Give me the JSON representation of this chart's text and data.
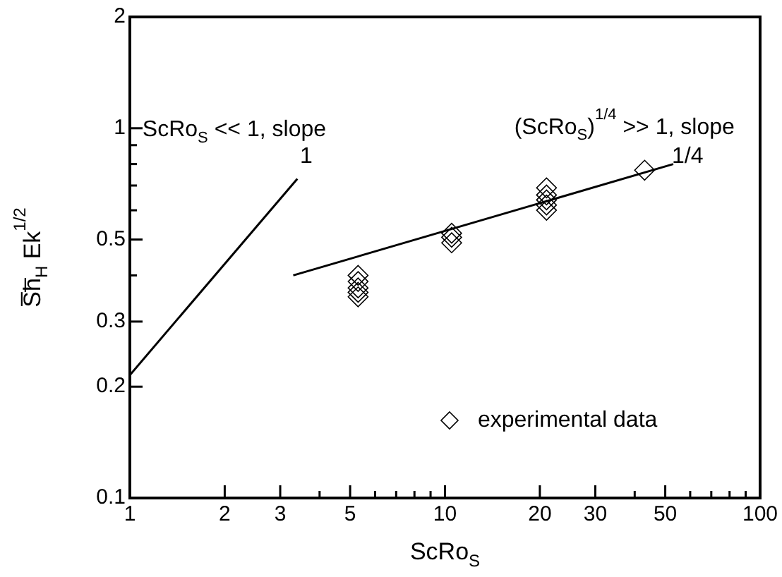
{
  "chart_data": {
    "type": "scatter",
    "xlabel": "ScRo$_{S}$",
    "ylabel": "S̅h̅$_{H}$ Ek$^{1/2}$",
    "log": "xy",
    "xlim": [
      1,
      100
    ],
    "ylim": [
      0.1,
      2
    ],
    "xticks": [
      1,
      2,
      3,
      {
        "value": 4,
        "label": null
      },
      5,
      {
        "value": 6,
        "label": null
      },
      {
        "value": 7,
        "label": null
      },
      {
        "value": 8,
        "label": null
      },
      {
        "value": 9,
        "label": null
      },
      10,
      20,
      30,
      {
        "value": 40,
        "label": null
      },
      50,
      {
        "value": 60,
        "label": null
      },
      {
        "value": 70,
        "label": null
      },
      {
        "value": 80,
        "label": null
      },
      {
        "value": 90,
        "label": null
      },
      100
    ],
    "yticks": [
      0.1,
      0.2,
      0.3,
      {
        "value": 0.4,
        "label": null
      },
      0.5,
      {
        "value": 0.6,
        "label": null
      },
      {
        "value": 0.7,
        "label": null
      },
      {
        "value": 0.8,
        "label": null
      },
      {
        "value": 0.9,
        "label": null
      },
      1,
      2
    ],
    "grid": false,
    "legend": "bottom right",
    "series": [
      {
        "type": "line",
        "color": "#000000",
        "x": [
          1,
          3.4
        ],
        "values": [
          0.215,
          0.73
        ],
        "marker": "none",
        "line_style": "solid"
      },
      {
        "type": "line",
        "color": "#000000",
        "x": [
          3.3,
          53
        ],
        "values": [
          0.4,
          0.8
        ],
        "marker": "none",
        "line_style": "solid"
      },
      {
        "name": "experimental data",
        "color": "#000000",
        "marker": "diamond",
        "x": [
          5.3,
          5.3,
          5.3,
          5.3,
          5.3,
          10.5,
          10.5,
          10.5,
          21,
          21,
          21,
          21,
          21,
          43
        ],
        "values": [
          0.4,
          0.385,
          0.37,
          0.36,
          0.35,
          0.52,
          0.507,
          0.49,
          0.69,
          0.66,
          0.64,
          0.62,
          0.6,
          0.77
        ]
      }
    ],
    "annotations": [
      "ScRo$_{S}$ << 1, slope",
      "1",
      "(ScRo$_{S}$)$^{1/4}$ >> 1, slope",
      "1/4"
    ]
  }
}
